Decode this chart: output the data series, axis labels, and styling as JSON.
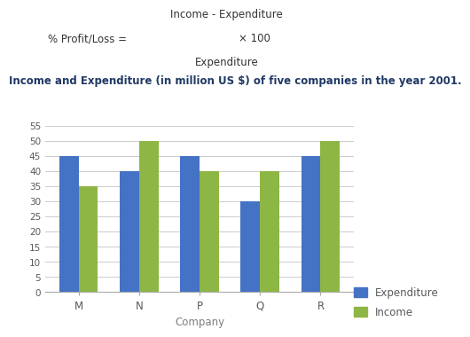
{
  "companies": [
    "M",
    "N",
    "P",
    "Q",
    "R"
  ],
  "expenditure": [
    45,
    40,
    45,
    30,
    45
  ],
  "income": [
    35,
    50,
    40,
    40,
    50
  ],
  "bar_color_expenditure": "#4472C4",
  "bar_color_income": "#8DB645",
  "ylim": [
    0,
    57
  ],
  "yticks": [
    0,
    5,
    10,
    15,
    20,
    25,
    30,
    35,
    40,
    45,
    50,
    55
  ],
  "xlabel": "Company",
  "xlabel_color": "#7F7F7F",
  "subtitle": "Income and Expenditure (in million US $) of five companies in the year 2001.",
  "subtitle_fontsize": 8.5,
  "formula_prefix": "% Profit/Loss =",
  "formula_numerator": "Income - Expenditure",
  "formula_denominator": "Expenditure",
  "formula_multiplier": "× 100",
  "legend_expenditure": "Expenditure",
  "legend_income": "Income",
  "bar_width": 0.32,
  "background_color": "#FFFFFF",
  "grid_color": "#CCCCCC",
  "tick_label_color": "#595959",
  "text_color": "#333333",
  "subtitle_color": "#1F3864"
}
